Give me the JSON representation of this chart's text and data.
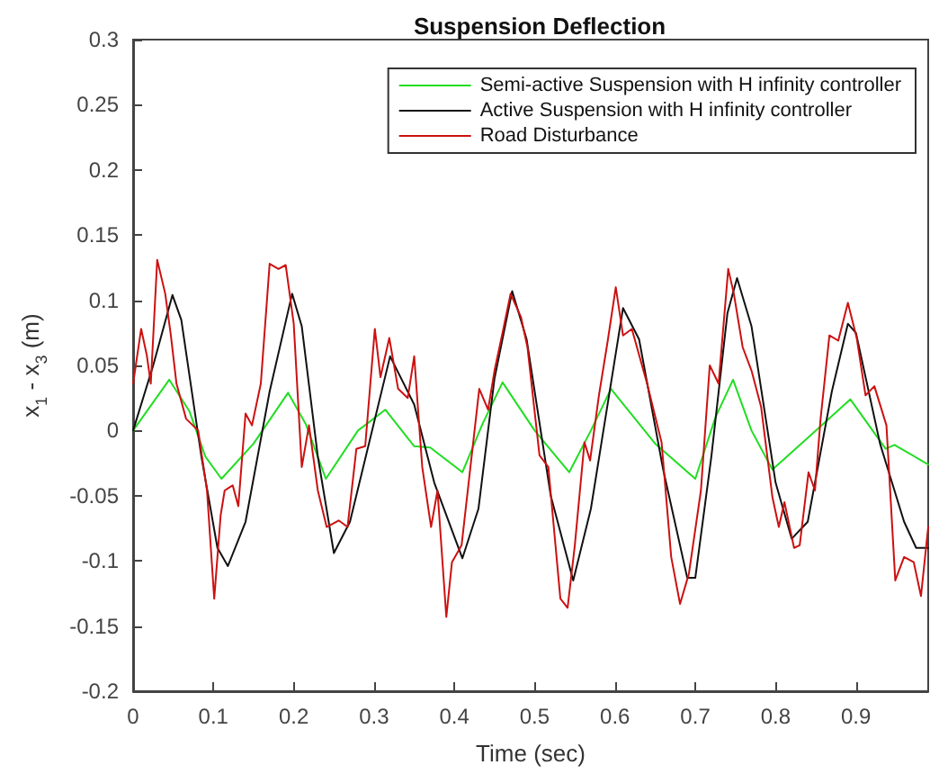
{
  "chart_data": {
    "type": "line",
    "title": "Suspension Deflection",
    "xlabel": "Time (sec)",
    "ylabel": "x$_{1}$ - x$_{3}$ (m)",
    "xlim": [
      0,
      0.99
    ],
    "xticks": [
      0,
      0.1,
      0.2,
      0.3,
      0.4,
      0.5,
      0.6,
      0.7,
      0.8,
      0.9
    ],
    "ylim": [
      -0.2,
      0.3
    ],
    "yticks": [
      -0.2,
      -0.15,
      -0.1,
      -0.05,
      0,
      0.05,
      0.1,
      0.15,
      0.2,
      0.25,
      0.3
    ],
    "grid": false,
    "legend": "top right",
    "marker": "none",
    "line_style": "solid",
    "series": [
      {
        "name": "Semi-active Suspension with H infinity controller",
        "color": "#22dd22",
        "x": [
          0,
          0.045,
          0.07,
          0.09,
          0.11,
          0.15,
          0.193,
          0.215,
          0.24,
          0.28,
          0.314,
          0.35,
          0.37,
          0.41,
          0.435,
          0.46,
          0.5,
          0.543,
          0.57,
          0.595,
          0.65,
          0.7,
          0.725,
          0.747,
          0.77,
          0.796,
          0.85,
          0.893,
          0.937,
          0.948,
          0.99
        ],
        "values": [
          0,
          0.039,
          0.015,
          -0.02,
          -0.037,
          -0.01,
          0.029,
          0.005,
          -0.037,
          0,
          0.016,
          -0.012,
          -0.013,
          -0.032,
          0.005,
          0.037,
          0,
          -0.032,
          0,
          0.032,
          -0.01,
          -0.037,
          0.01,
          0.039,
          0,
          -0.03,
          0,
          0.024,
          -0.014,
          -0.011,
          -0.026
        ]
      },
      {
        "name": "Active Suspension with H infinity controller",
        "color": "#111111",
        "x": [
          0,
          0.025,
          0.049,
          0.06,
          0.085,
          0.105,
          0.118,
          0.14,
          0.17,
          0.198,
          0.21,
          0.23,
          0.25,
          0.27,
          0.32,
          0.35,
          0.375,
          0.41,
          0.43,
          0.45,
          0.472,
          0.49,
          0.52,
          0.548,
          0.57,
          0.61,
          0.63,
          0.66,
          0.69,
          0.7,
          0.72,
          0.74,
          0.752,
          0.77,
          0.8,
          0.82,
          0.84,
          0.87,
          0.89,
          0.9,
          0.93,
          0.96,
          0.975,
          0.99
        ],
        "values": [
          0,
          0.05,
          0.104,
          0.085,
          -0.02,
          -0.09,
          -0.104,
          -0.07,
          0.03,
          0.105,
          0.08,
          -0.02,
          -0.094,
          -0.07,
          0.057,
          0.02,
          -0.04,
          -0.098,
          -0.06,
          0.04,
          0.107,
          0.07,
          -0.05,
          -0.115,
          -0.06,
          0.094,
          0.07,
          -0.03,
          -0.113,
          -0.113,
          -0.02,
          0.09,
          0.117,
          0.08,
          -0.04,
          -0.083,
          -0.07,
          0.03,
          0.082,
          0.075,
          -0.01,
          -0.07,
          -0.09,
          -0.09
        ]
      },
      {
        "name": "Road Disturbance",
        "color": "#cc1111",
        "x": [
          0,
          0.01,
          0.017,
          0.022,
          0.03,
          0.04,
          0.047,
          0.054,
          0.066,
          0.081,
          0.092,
          0.101,
          0.109,
          0.114,
          0.124,
          0.131,
          0.14,
          0.148,
          0.159,
          0.17,
          0.181,
          0.19,
          0.2,
          0.21,
          0.219,
          0.23,
          0.241,
          0.256,
          0.267,
          0.278,
          0.289,
          0.301,
          0.308,
          0.319,
          0.33,
          0.342,
          0.35,
          0.36,
          0.371,
          0.379,
          0.39,
          0.397,
          0.409,
          0.42,
          0.431,
          0.442,
          0.45,
          0.461,
          0.47,
          0.483,
          0.491,
          0.506,
          0.517,
          0.532,
          0.541,
          0.55,
          0.562,
          0.569,
          0.58,
          0.591,
          0.601,
          0.61,
          0.621,
          0.64,
          0.658,
          0.67,
          0.681,
          0.692,
          0.707,
          0.718,
          0.729,
          0.741,
          0.748,
          0.759,
          0.77,
          0.782,
          0.796,
          0.804,
          0.811,
          0.823,
          0.83,
          0.841,
          0.849,
          0.856,
          0.867,
          0.878,
          0.89,
          0.901,
          0.912,
          0.923,
          0.938,
          0.949,
          0.96,
          0.972,
          0.981,
          0.99
        ],
        "values": [
          0.036,
          0.078,
          0.058,
          0.036,
          0.131,
          0.105,
          0.073,
          0.036,
          0.009,
          0,
          -0.046,
          -0.129,
          -0.065,
          -0.046,
          -0.042,
          -0.058,
          0.013,
          0.004,
          0.036,
          0.128,
          0.124,
          0.127,
          0.082,
          -0.028,
          0.004,
          -0.046,
          -0.074,
          -0.069,
          -0.074,
          -0.014,
          -0.012,
          0.078,
          0.041,
          0.071,
          0.032,
          0.025,
          0.057,
          -0.028,
          -0.074,
          -0.046,
          -0.143,
          -0.101,
          -0.088,
          -0.028,
          0.032,
          0.016,
          0.046,
          0.078,
          0.105,
          0.087,
          0.064,
          -0.019,
          -0.028,
          -0.129,
          -0.136,
          -0.088,
          -0.009,
          -0.023,
          0.027,
          0.069,
          0.11,
          0.073,
          0.078,
          0.036,
          -0.009,
          -0.097,
          -0.133,
          -0.11,
          -0.046,
          0.05,
          0.036,
          0.124,
          0.105,
          0.064,
          0.046,
          0.018,
          -0.051,
          -0.074,
          -0.055,
          -0.09,
          -0.088,
          -0.032,
          -0.046,
          0.009,
          0.073,
          0.069,
          0.098,
          0.071,
          0.027,
          0.034,
          0.004,
          -0.115,
          -0.097,
          -0.101,
          -0.127,
          -0.074
        ]
      }
    ]
  }
}
